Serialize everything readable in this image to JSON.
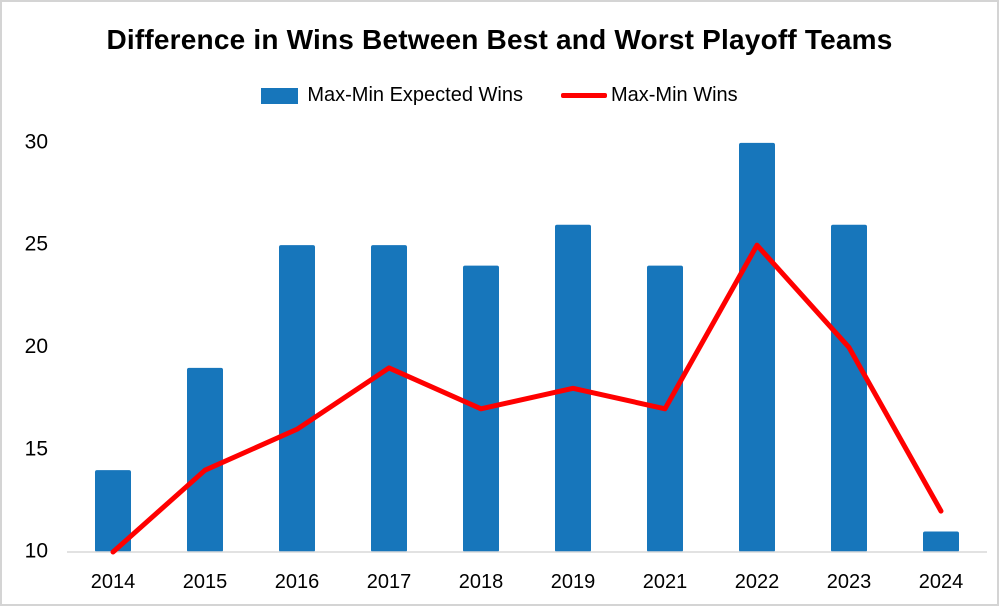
{
  "chart_data": {
    "type": "bar",
    "title": "Difference in Wins Between Best and Worst Playoff Teams",
    "categories": [
      "2014",
      "2015",
      "2016",
      "2017",
      "2018",
      "2019",
      "2021",
      "2022",
      "2023",
      "2024"
    ],
    "series": [
      {
        "name": "Max-Min Expected Wins",
        "type": "bar",
        "color": "#1776BB",
        "values": [
          14,
          19,
          25,
          25,
          24,
          26,
          24,
          30,
          26,
          11
        ]
      },
      {
        "name": "Max-Min Wins",
        "type": "line",
        "color": "#FF0000",
        "values": [
          10,
          14,
          16,
          19,
          17,
          18,
          17,
          25,
          20,
          12
        ]
      }
    ],
    "ylim": [
      10,
      32
    ],
    "y_ticks": [
      10,
      15,
      20,
      25,
      30
    ],
    "xlabel": "",
    "ylabel": "",
    "grid": false,
    "legend_position": "top",
    "axis_line_color": "#d9d9d9"
  }
}
